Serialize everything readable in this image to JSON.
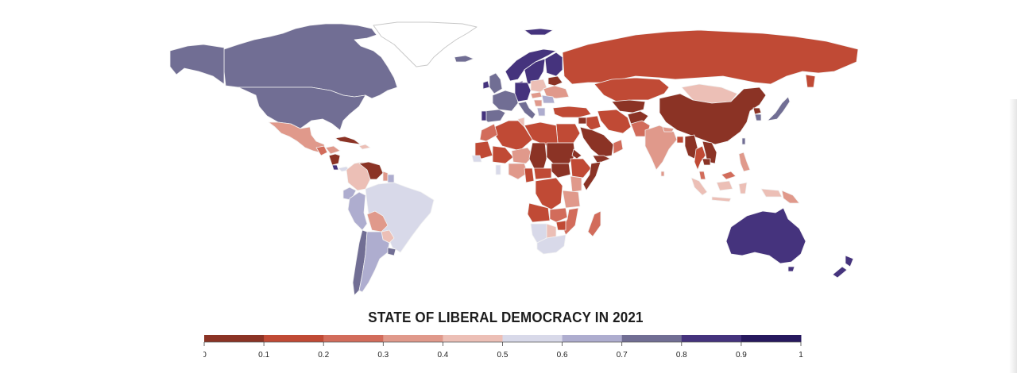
{
  "chart_data": {
    "type": "heatmap",
    "subtype": "choropleth-world-map",
    "title": "STATE OF LIBERAL DEMOCRACY IN 2021",
    "metric": "Liberal democracy index",
    "scale": {
      "min": 0,
      "max": 1,
      "step": 0.1,
      "tick_labels": [
        "0",
        "0.1",
        "0.2",
        "0.3",
        "0.4",
        "0.5",
        "0.6",
        "0.7",
        "0.8",
        "0.9",
        "1"
      ],
      "bins": [
        {
          "range": [
            0.0,
            0.1
          ],
          "color": "#8b3325"
        },
        {
          "range": [
            0.1,
            0.2
          ],
          "color": "#c04a35"
        },
        {
          "range": [
            0.2,
            0.3
          ],
          "color": "#d26c5b"
        },
        {
          "range": [
            0.3,
            0.4
          ],
          "color": "#e0998b"
        },
        {
          "range": [
            0.4,
            0.5
          ],
          "color": "#ecbfb6"
        },
        {
          "range": [
            0.5,
            0.6
          ],
          "color": "#d8d9e9"
        },
        {
          "range": [
            0.6,
            0.7
          ],
          "color": "#aeadcf"
        },
        {
          "range": [
            0.7,
            0.8
          ],
          "color": "#716e94"
        },
        {
          "range": [
            0.8,
            0.9
          ],
          "color": "#45337d"
        },
        {
          "range": [
            0.9,
            1.0
          ],
          "color": "#27195e"
        }
      ]
    },
    "legend_position": "bottom-center",
    "regions": [
      {
        "name": "United States",
        "bin": 7
      },
      {
        "name": "Canada",
        "bin": 7
      },
      {
        "name": "Greenland",
        "bin": null
      },
      {
        "name": "Mexico",
        "bin": 3
      },
      {
        "name": "Guatemala",
        "bin": 2
      },
      {
        "name": "Honduras",
        "bin": 3
      },
      {
        "name": "Nicaragua",
        "bin": 0
      },
      {
        "name": "Costa Rica",
        "bin": 8
      },
      {
        "name": "Panama",
        "bin": 5
      },
      {
        "name": "Cuba",
        "bin": 0
      },
      {
        "name": "Haiti / Dominican Republic",
        "bin": 4
      },
      {
        "name": "Venezuela",
        "bin": 0
      },
      {
        "name": "Colombia",
        "bin": 4
      },
      {
        "name": "Guyana",
        "bin": 3
      },
      {
        "name": "Suriname",
        "bin": 6
      },
      {
        "name": "Ecuador",
        "bin": 6
      },
      {
        "name": "Peru",
        "bin": 6
      },
      {
        "name": "Brazil",
        "bin": 5
      },
      {
        "name": "Bolivia",
        "bin": 3
      },
      {
        "name": "Paraguay",
        "bin": 4
      },
      {
        "name": "Chile",
        "bin": 7
      },
      {
        "name": "Argentina",
        "bin": 6
      },
      {
        "name": "Uruguay",
        "bin": 7
      },
      {
        "name": "Iceland",
        "bin": 7
      },
      {
        "name": "United Kingdom",
        "bin": 7
      },
      {
        "name": "Ireland",
        "bin": 8
      },
      {
        "name": "Norway",
        "bin": 8
      },
      {
        "name": "Sweden",
        "bin": 8
      },
      {
        "name": "Finland",
        "bin": 8
      },
      {
        "name": "Denmark",
        "bin": 8
      },
      {
        "name": "Germany",
        "bin": 8
      },
      {
        "name": "France",
        "bin": 7
      },
      {
        "name": "Spain",
        "bin": 7
      },
      {
        "name": "Portugal",
        "bin": 8
      },
      {
        "name": "Italy",
        "bin": 7
      },
      {
        "name": "Poland",
        "bin": 4
      },
      {
        "name": "Hungary",
        "bin": 3
      },
      {
        "name": "Belarus",
        "bin": 0
      },
      {
        "name": "Ukraine",
        "bin": 3
      },
      {
        "name": "Romania",
        "bin": 6
      },
      {
        "name": "Serbia",
        "bin": 3
      },
      {
        "name": "Greece",
        "bin": 6
      },
      {
        "name": "Svalbard",
        "bin": 8
      },
      {
        "name": "Russia",
        "bin": 1
      },
      {
        "name": "Turkey",
        "bin": 1
      },
      {
        "name": "Kazakhstan",
        "bin": 1
      },
      {
        "name": "Uzbekistan / Turkmenistan",
        "bin": 0
      },
      {
        "name": "Afghanistan",
        "bin": 0
      },
      {
        "name": "Iran",
        "bin": 1
      },
      {
        "name": "Pakistan",
        "bin": 2
      },
      {
        "name": "India",
        "bin": 3
      },
      {
        "name": "Nepal",
        "bin": 3
      },
      {
        "name": "Bangladesh",
        "bin": 1
      },
      {
        "name": "Sri Lanka",
        "bin": 3
      },
      {
        "name": "Mongolia",
        "bin": 4
      },
      {
        "name": "China",
        "bin": 0
      },
      {
        "name": "North Korea",
        "bin": 0
      },
      {
        "name": "South Korea",
        "bin": 7
      },
      {
        "name": "Japan",
        "bin": 7
      },
      {
        "name": "Taiwan",
        "bin": 7
      },
      {
        "name": "Myanmar",
        "bin": 0
      },
      {
        "name": "Thailand",
        "bin": 1
      },
      {
        "name": "Laos / Vietnam",
        "bin": 0
      },
      {
        "name": "Cambodia",
        "bin": 0
      },
      {
        "name": "Malaysia",
        "bin": 2
      },
      {
        "name": "Philippines",
        "bin": 3
      },
      {
        "name": "Indonesia",
        "bin": 4
      },
      {
        "name": "Papua New Guinea",
        "bin": 3
      },
      {
        "name": "Australia",
        "bin": 8
      },
      {
        "name": "New Zealand",
        "bin": 8
      },
      {
        "name": "Saudi Arabia",
        "bin": 0
      },
      {
        "name": "Yemen",
        "bin": 0
      },
      {
        "name": "Oman",
        "bin": 2
      },
      {
        "name": "Iraq",
        "bin": 1
      },
      {
        "name": "Syria",
        "bin": 0
      },
      {
        "name": "Morocco",
        "bin": 2
      },
      {
        "name": "Algeria",
        "bin": 1
      },
      {
        "name": "Libya",
        "bin": 1
      },
      {
        "name": "Egypt",
        "bin": 1
      },
      {
        "name": "Tunisia",
        "bin": 4
      },
      {
        "name": "Mauritania",
        "bin": 1
      },
      {
        "name": "Mali",
        "bin": 1
      },
      {
        "name": "Niger",
        "bin": 3
      },
      {
        "name": "Chad",
        "bin": 0
      },
      {
        "name": "Sudan",
        "bin": 0
      },
      {
        "name": "South Sudan",
        "bin": 0
      },
      {
        "name": "Ethiopia",
        "bin": 1
      },
      {
        "name": "Eritrea",
        "bin": 0
      },
      {
        "name": "Somalia",
        "bin": 0
      },
      {
        "name": "Senegal",
        "bin": 5
      },
      {
        "name": "Ghana",
        "bin": 5
      },
      {
        "name": "Nigeria",
        "bin": 3
      },
      {
        "name": "Cameroon",
        "bin": 1
      },
      {
        "name": "Central African Republic",
        "bin": 1
      },
      {
        "name": "DR Congo",
        "bin": 1
      },
      {
        "name": "Kenya",
        "bin": 3
      },
      {
        "name": "Tanzania",
        "bin": 3
      },
      {
        "name": "Angola",
        "bin": 1
      },
      {
        "name": "Zambia",
        "bin": 2
      },
      {
        "name": "Mozambique",
        "bin": 2
      },
      {
        "name": "Zimbabwe",
        "bin": 1
      },
      {
        "name": "Madagascar",
        "bin": 2
      },
      {
        "name": "Namibia",
        "bin": 5
      },
      {
        "name": "Botswana",
        "bin": 4
      },
      {
        "name": "South Africa",
        "bin": 5
      }
    ]
  }
}
